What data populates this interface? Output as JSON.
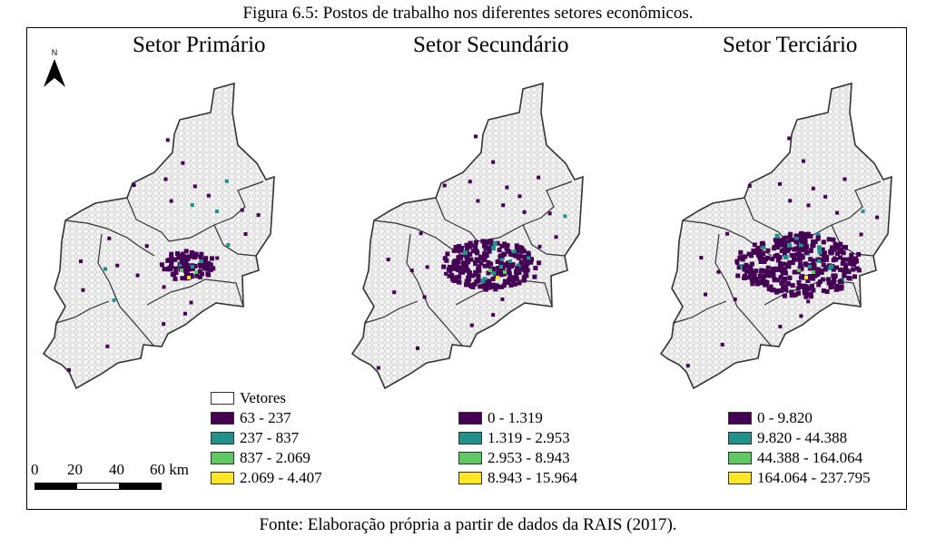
{
  "caption": "Figura 6.5: Postos de trabalho nos diferentes setores econômicos.",
  "source": "Fonte: Elaboração própria a partir de dados da RAIS (2017).",
  "north_label": "N",
  "colors": {
    "base": "#ececec",
    "c1": "#440154",
    "c2": "#21918c",
    "c3": "#5ec962",
    "c4": "#fde725"
  },
  "maps": [
    {
      "title": "Setor Primário",
      "legend": {
        "vetores": "Vetores",
        "classes": [
          "63 - 237",
          "237 - 837",
          "837 - 2.069",
          "2.069 - 4.407"
        ]
      }
    },
    {
      "title": "Setor Secundário",
      "legend": {
        "classes": [
          "0 - 1.319",
          "1.319 - 2.953",
          "2.953 - 8.943",
          "8.943 - 15.964"
        ]
      }
    },
    {
      "title": "Setor Terciário",
      "legend": {
        "classes": [
          "0 - 9.820",
          "9.820 - 44.388",
          "44.388 - 164.064",
          "164.064 - 237.795"
        ]
      }
    }
  ],
  "scalebar": {
    "ticks": [
      "0",
      "20",
      "40",
      "60 km"
    ]
  }
}
